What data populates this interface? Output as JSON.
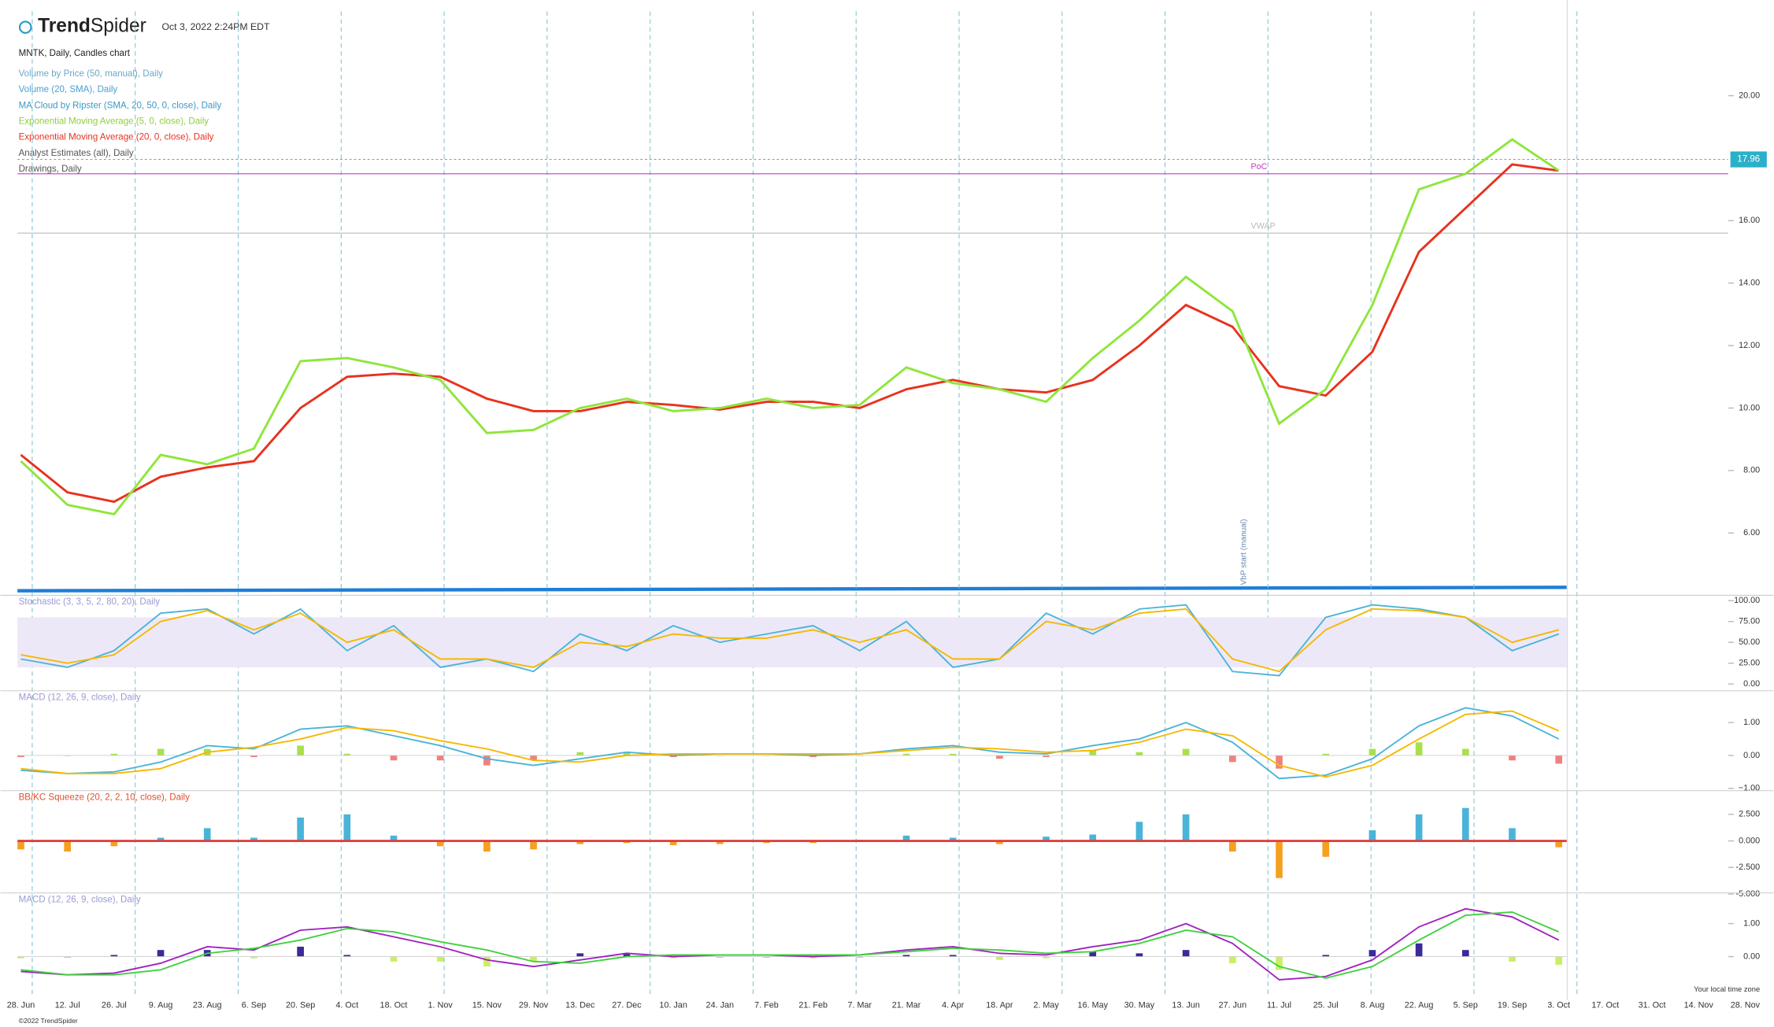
{
  "header": {
    "brand_bold": "Trend",
    "brand": "Spider",
    "timestamp": "Oct 3, 2022 2:24PM EDT",
    "symbol": "MNTK, Daily, Candles chart",
    "legend": [
      {
        "text": "Volume by Price (50, manual), Daily",
        "color": "#6aa8c8"
      },
      {
        "text": "Volume (20, SMA), Daily",
        "color": "#4aa0d0"
      },
      {
        "text": "MA Cloud by Ripster (SMA, 20, 50, 0, close), Daily",
        "color": "#3a9ac8"
      },
      {
        "text": "Exponential Moving Average (5, 0, close), Daily",
        "color": "#8ed03a"
      },
      {
        "text": "Exponential Moving Average (20, 0, close), Daily",
        "color": "#e8321e"
      },
      {
        "text": "Analyst Estimates (all), Daily",
        "color": "#555555"
      },
      {
        "text": "Drawings, Daily",
        "color": "#555555"
      }
    ]
  },
  "footer": {
    "copyright": "©2022 TrendSpider",
    "timezone": "Your local time zone"
  },
  "chart_data": [
    {
      "type": "line",
      "categories": [
        "28. Jun",
        "12. Jul",
        "26. Jul",
        "9. Aug",
        "23. Aug",
        "6. Sep",
        "20. Sep",
        "4. Oct",
        "18. Oct",
        "1. Nov",
        "15. Nov",
        "29. Nov",
        "13. Dec",
        "27. Dec",
        "10. Jan",
        "24. Jan",
        "7. Feb",
        "21. Feb",
        "7. Mar",
        "21. Mar",
        "4. Apr",
        "18. Apr",
        "2. May",
        "16. May",
        "30. May",
        "13. Jun",
        "27. Jun",
        "11. Jul",
        "25. Jul",
        "8. Aug",
        "22. Aug",
        "5. Sep",
        "19. Sep",
        "3. Oct",
        "17. Oct",
        "31. Oct",
        "14. Nov",
        "28. Nov"
      ],
      "ylim": [
        4.15,
        22.7
      ],
      "yticks": [
        {
          "value": 6,
          "label": "6.00"
        },
        {
          "value": 8,
          "label": "8.00"
        },
        {
          "value": 10,
          "label": "10.00"
        },
        {
          "value": 12,
          "label": "12.00"
        },
        {
          "value": 14,
          "label": "14.00"
        },
        {
          "value": 16,
          "label": "16.00"
        },
        {
          "value": 20,
          "label": "20.00"
        }
      ],
      "series": [
        {
          "name": "Exponential Moving Average (20, 0, close)",
          "color": "#e8321e",
          "values": [
            8.5,
            7.3,
            7.0,
            7.8,
            8.1,
            8.3,
            10.0,
            11.0,
            11.1,
            11.0,
            10.3,
            9.9,
            9.9,
            10.2,
            10.1,
            9.95,
            10.2,
            10.2,
            10.0,
            10.6,
            10.9,
            10.6,
            10.5,
            10.9,
            12.0,
            13.3,
            12.6,
            10.7,
            10.4,
            11.8,
            15.0,
            16.4,
            17.8,
            17.6,
            null,
            null,
            null,
            null
          ]
        },
        {
          "name": "Exponential Moving Average (5, 0, close)",
          "color": "#8ee63a",
          "values": [
            8.3,
            6.9,
            6.6,
            8.5,
            8.2,
            8.7,
            11.5,
            11.6,
            11.3,
            10.9,
            9.2,
            9.3,
            10.0,
            10.3,
            9.9,
            10.0,
            10.3,
            10.0,
            10.1,
            11.3,
            10.8,
            10.6,
            10.2,
            11.6,
            12.8,
            14.2,
            13.1,
            9.5,
            10.6,
            13.3,
            17.0,
            17.5,
            18.6,
            17.6,
            null,
            null,
            null,
            null
          ]
        }
      ],
      "reference_lines": [
        {
          "label": "PoC",
          "value": 17.5,
          "color": "#c040c0"
        },
        {
          "label": "VWAP",
          "value": 15.6,
          "color": "#bbbbbb"
        }
      ],
      "current_price": 17.96,
      "annotation": "VbP start (manual)"
    },
    {
      "type": "line",
      "title": "Stochastic (3, 3, 5, 2, 80, 20), Daily",
      "ylim": [
        -4,
        101
      ],
      "yticks": [
        {
          "value": 0,
          "label": "0.00"
        },
        {
          "value": 25,
          "label": "25.00"
        },
        {
          "value": 50,
          "label": "50.00"
        },
        {
          "value": 75,
          "label": "75.00"
        },
        {
          "value": 100,
          "label": "100.00"
        }
      ],
      "series": [
        {
          "color": "#4ab4d8",
          "values": [
            30,
            20,
            40,
            85,
            90,
            60,
            90,
            40,
            70,
            20,
            30,
            15,
            60,
            40,
            70,
            50,
            60,
            70,
            40,
            75,
            20,
            30,
            85,
            60,
            90,
            95,
            15,
            10,
            80,
            95,
            90,
            80,
            40,
            60,
            null,
            null,
            null,
            null
          ]
        },
        {
          "color": "#f5b800",
          "values": [
            35,
            25,
            35,
            75,
            88,
            65,
            85,
            50,
            65,
            30,
            30,
            20,
            50,
            45,
            60,
            55,
            55,
            65,
            50,
            65,
            30,
            30,
            75,
            65,
            85,
            90,
            30,
            15,
            65,
            90,
            88,
            80,
            50,
            65,
            null,
            null,
            null,
            null
          ]
        }
      ]
    },
    {
      "type": "line",
      "title": "MACD (12, 26, 9, close), Daily",
      "ylim": [
        -1.14,
        1.83
      ],
      "yticks": [
        {
          "value": -1,
          "label": "−1.00"
        },
        {
          "value": 0,
          "label": "0.00"
        },
        {
          "value": 1,
          "label": "1.00"
        }
      ],
      "series": [
        {
          "type": "bar",
          "color": "#a8e04a",
          "negative_color": "#f08080",
          "values": [
            -0.05,
            0,
            0.05,
            0.2,
            0.2,
            -0.05,
            0.3,
            0.05,
            -0.15,
            -0.15,
            -0.3,
            -0.15,
            0.1,
            0.1,
            -0.05,
            0,
            0,
            -0.05,
            0,
            0.05,
            0.05,
            -0.1,
            -0.05,
            0.15,
            0.1,
            0.2,
            -0.2,
            -0.4,
            0.05,
            0.2,
            0.4,
            0.2,
            -0.15,
            -0.25,
            null,
            null,
            null,
            null
          ]
        },
        {
          "color": "#4ab4d8",
          "values": [
            -0.45,
            -0.55,
            -0.5,
            -0.2,
            0.3,
            0.2,
            0.8,
            0.9,
            0.6,
            0.3,
            -0.1,
            -0.3,
            -0.1,
            0.1,
            0.0,
            0.05,
            0.05,
            0.0,
            0.05,
            0.2,
            0.3,
            0.1,
            0.05,
            0.3,
            0.5,
            1.0,
            0.4,
            -0.7,
            -0.6,
            -0.1,
            0.9,
            1.45,
            1.2,
            0.5,
            null,
            null,
            null,
            null
          ]
        },
        {
          "color": "#f5b800",
          "values": [
            -0.4,
            -0.55,
            -0.55,
            -0.4,
            0.1,
            0.25,
            0.5,
            0.85,
            0.75,
            0.45,
            0.2,
            -0.15,
            -0.2,
            0.0,
            0.05,
            0.05,
            0.05,
            0.05,
            0.05,
            0.15,
            0.25,
            0.2,
            0.1,
            0.15,
            0.4,
            0.8,
            0.6,
            -0.3,
            -0.65,
            -0.3,
            0.5,
            1.25,
            1.35,
            0.75,
            null,
            null,
            null,
            null
          ]
        }
      ]
    },
    {
      "type": "line",
      "title": "BB/KC Squeeze (20, 2, 2, 10, close), Daily",
      "ylim": [
        -4.9,
        4.3
      ],
      "yticks": [
        {
          "value": -5,
          "label": "-5.000"
        },
        {
          "value": -2.5,
          "label": "-2.500"
        },
        {
          "value": 0,
          "label": "0.000"
        },
        {
          "value": 2.5,
          "label": "2.500"
        }
      ],
      "series": [
        {
          "type": "bar",
          "color": "#4ab4d8",
          "negative_color": "#f5a020",
          "values": [
            -0.8,
            -1.0,
            -0.5,
            0.3,
            1.2,
            0.3,
            2.2,
            2.5,
            0.5,
            -0.5,
            -1.0,
            -0.8,
            -0.3,
            -0.2,
            -0.4,
            -0.3,
            -0.2,
            -0.2,
            0.1,
            0.5,
            0.3,
            -0.3,
            0.4,
            0.6,
            1.8,
            2.5,
            -1.0,
            -3.5,
            -1.5,
            1.0,
            2.5,
            3.1,
            1.2,
            -0.6,
            null,
            null,
            null,
            null
          ]
        }
      ]
    },
    {
      "type": "line",
      "title": "MACD (12, 26, 9, close), Daily",
      "ylim": [
        -1.03,
        1.79
      ],
      "yticks": [
        {
          "value": 0,
          "label": "0.00"
        },
        {
          "value": 1,
          "label": "1.00"
        }
      ],
      "series": [
        {
          "type": "bar",
          "color": "#3a2a9a",
          "negative_color": "#c8f060",
          "values": [
            -0.05,
            0,
            0.05,
            0.2,
            0.2,
            -0.05,
            0.3,
            0.05,
            -0.15,
            -0.15,
            -0.3,
            -0.15,
            0.1,
            0.1,
            -0.05,
            0,
            0,
            -0.05,
            0,
            0.05,
            0.05,
            -0.1,
            -0.05,
            0.15,
            0.1,
            0.2,
            -0.2,
            -0.4,
            0.05,
            0.2,
            0.4,
            0.2,
            -0.15,
            -0.25,
            null,
            null,
            null,
            null
          ]
        },
        {
          "color": "#a020c0",
          "values": [
            -0.45,
            -0.55,
            -0.5,
            -0.2,
            0.3,
            0.2,
            0.8,
            0.9,
            0.6,
            0.3,
            -0.1,
            -0.3,
            -0.1,
            0.1,
            0.0,
            0.05,
            0.05,
            0.0,
            0.05,
            0.2,
            0.3,
            0.1,
            0.05,
            0.3,
            0.5,
            1.0,
            0.4,
            -0.7,
            -0.6,
            -0.1,
            0.9,
            1.45,
            1.2,
            0.5,
            null,
            null,
            null,
            null
          ]
        },
        {
          "color": "#40d040",
          "values": [
            -0.4,
            -0.55,
            -0.55,
            -0.4,
            0.1,
            0.25,
            0.5,
            0.85,
            0.75,
            0.45,
            0.2,
            -0.15,
            -0.2,
            0.0,
            0.05,
            0.05,
            0.05,
            0.05,
            0.05,
            0.15,
            0.25,
            0.2,
            0.1,
            0.15,
            0.4,
            0.8,
            0.6,
            -0.3,
            -0.65,
            -0.3,
            0.5,
            1.25,
            1.35,
            0.75,
            null,
            null,
            null,
            null
          ]
        }
      ]
    }
  ]
}
